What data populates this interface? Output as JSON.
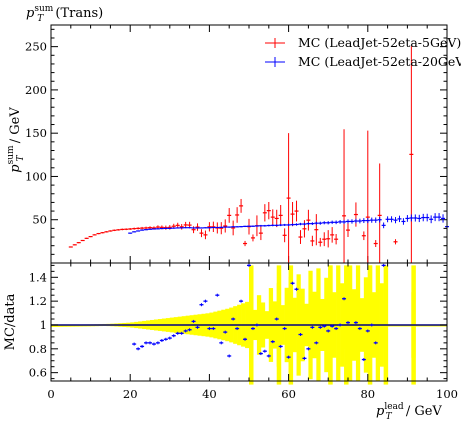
{
  "chart_data": [
    {
      "type": "line",
      "panel": "main",
      "title": {
        "base": "p",
        "sup": "sum",
        "sub": "T",
        "suffix": " (Trans)"
      },
      "ylabel": {
        "base": "p",
        "sup": "sum",
        "sub": "T",
        "suffix": " / GeV"
      },
      "xlim": [
        0,
        100
      ],
      "ylim": [
        0,
        275
      ],
      "yticks": [
        50,
        100,
        150,
        200,
        250
      ],
      "legend_position": "top-right",
      "series": [
        {
          "name": "MC (LeadJet-52eta-5GeV)",
          "color": "#ff0000",
          "points": [
            [
              5,
              18.5,
              0.6
            ],
            [
              6,
              21.0,
              0.6
            ],
            [
              7,
              23.5,
              0.6
            ],
            [
              8,
              26.0,
              0.6
            ],
            [
              9,
              28.5,
              0.6
            ],
            [
              10,
              30.5,
              0.6
            ],
            [
              11,
              32.5,
              0.7
            ],
            [
              12,
              34.0,
              0.7
            ],
            [
              13,
              35.0,
              0.7
            ],
            [
              14,
              36.0,
              0.8
            ],
            [
              15,
              37.0,
              0.8
            ],
            [
              16,
              37.8,
              0.9
            ],
            [
              17,
              38.3,
              0.9
            ],
            [
              18,
              38.8,
              1.0
            ],
            [
              19,
              39.0,
              1.0
            ],
            [
              20,
              39.3,
              1.1
            ],
            [
              21,
              39.7,
              1.2
            ],
            [
              22,
              40.0,
              1.3
            ],
            [
              23,
              40.3,
              1.4
            ],
            [
              24,
              40.5,
              1.5
            ],
            [
              25,
              40.8,
              1.6
            ],
            [
              26,
              40.5,
              1.8
            ],
            [
              27,
              41.5,
              2.0
            ],
            [
              28,
              41.2,
              2.2
            ],
            [
              29,
              40.8,
              2.4
            ],
            [
              30,
              41.2,
              2.6
            ],
            [
              31,
              42.5,
              2.8
            ],
            [
              32,
              43.5,
              3.0
            ],
            [
              33,
              41.8,
              3.2
            ],
            [
              34,
              44.0,
              3.5
            ],
            [
              35,
              43.8,
              3.8
            ],
            [
              36,
              38.5,
              4.0
            ],
            [
              37,
              41.5,
              4.3
            ],
            [
              38,
              34.5,
              4.6
            ],
            [
              39,
              32.5,
              5.0
            ],
            [
              40,
              41.8,
              5.4
            ],
            [
              41,
              41.8,
              6.0
            ],
            [
              42,
              40.5,
              6.4
            ],
            [
              43,
              40.2,
              7.0
            ],
            [
              44,
              42.8,
              7.6
            ],
            [
              45,
              55.0,
              8.5
            ],
            [
              46,
              40.5,
              8.5
            ],
            [
              47,
              55.5,
              9.0
            ],
            [
              48,
              66.0,
              8.0
            ],
            [
              49,
              22.5,
              3.0
            ],
            [
              50,
              42.0,
              9.0
            ],
            [
              51,
              29.0,
              4.0
            ],
            [
              52,
              43.0,
              12.0
            ],
            [
              53,
              34.5,
              8.0
            ],
            [
              54,
              58.0,
              10.0
            ],
            [
              55,
              60.5,
              10.0
            ],
            [
              56,
              53.0,
              9.0
            ],
            [
              57,
              51.5,
              10.0
            ],
            [
              58,
              55.0,
              12.0
            ],
            [
              59,
              32.0,
              8.0
            ],
            [
              60,
              75.0,
              75.0
            ],
            [
              61,
              56.5,
              14.0
            ],
            [
              62,
              60.0,
              12.0
            ],
            [
              63,
              30.0,
              8.0
            ],
            [
              64,
              39.5,
              10.0
            ],
            [
              65,
              49.5,
              12.0
            ],
            [
              66,
              25.5,
              6.0
            ],
            [
              67,
              38.5,
              18.0
            ],
            [
              68,
              24.0,
              5.0
            ],
            [
              69,
              27.5,
              8.0
            ],
            [
              70,
              28.0,
              10.0
            ],
            [
              71,
              32.5,
              9.0
            ],
            [
              72,
              27.5,
              6.0
            ],
            [
              74,
              54.5,
              100.0
            ],
            [
              75,
              38.0,
              8.0
            ],
            [
              77,
              56.0,
              14.0
            ],
            [
              79,
              31.5,
              5.0
            ],
            [
              80,
              53.0,
              100.0
            ],
            [
              82,
              22.5,
              4.0
            ],
            [
              83,
              55.0,
              60.0
            ],
            [
              87,
              24.5,
              3.0
            ],
            [
              91,
              125.5,
              125.0
            ]
          ]
        },
        {
          "name": "MC (LeadJet-52eta-20GeV)",
          "color": "#0000ff",
          "points": [
            [
              20,
              34.5,
              0.6
            ],
            [
              21,
              36.0,
              0.6
            ],
            [
              22,
              37.0,
              0.6
            ],
            [
              23,
              38.0,
              0.6
            ],
            [
              24,
              38.5,
              0.6
            ],
            [
              25,
              39.0,
              0.6
            ],
            [
              26,
              39.3,
              0.6
            ],
            [
              27,
              39.5,
              0.6
            ],
            [
              28,
              39.8,
              0.6
            ],
            [
              29,
              40.0,
              0.6
            ],
            [
              30,
              40.0,
              0.6
            ],
            [
              31,
              40.3,
              0.6
            ],
            [
              32,
              40.5,
              0.6
            ],
            [
              33,
              40.6,
              0.6
            ],
            [
              34,
              40.8,
              0.6
            ],
            [
              35,
              40.8,
              0.6
            ],
            [
              36,
              40.5,
              0.6
            ],
            [
              37,
              40.5,
              0.6
            ],
            [
              38,
              40.5,
              0.6
            ],
            [
              39,
              40.7,
              0.6
            ],
            [
              40,
              40.7,
              0.6
            ],
            [
              41,
              41.0,
              0.6
            ],
            [
              42,
              41.0,
              0.7
            ],
            [
              43,
              41.2,
              0.7
            ],
            [
              44,
              41.5,
              0.7
            ],
            [
              45,
              41.5,
              0.7
            ],
            [
              46,
              41.8,
              0.8
            ],
            [
              47,
              41.8,
              0.8
            ],
            [
              48,
              42.0,
              0.8
            ],
            [
              49,
              42.3,
              0.8
            ],
            [
              50,
              42.5,
              0.9
            ],
            [
              51,
              42.5,
              0.9
            ],
            [
              52,
              42.8,
              0.9
            ],
            [
              53,
              43.0,
              1.0
            ],
            [
              54,
              43.0,
              1.0
            ],
            [
              55,
              43.3,
              1.0
            ],
            [
              56,
              43.5,
              1.1
            ],
            [
              57,
              43.5,
              1.1
            ],
            [
              58,
              43.8,
              1.2
            ],
            [
              59,
              44.0,
              1.2
            ],
            [
              60,
              44.0,
              1.3
            ],
            [
              61,
              44.3,
              1.3
            ],
            [
              62,
              44.5,
              1.4
            ],
            [
              63,
              45.0,
              1.4
            ],
            [
              64,
              45.0,
              1.5
            ],
            [
              65,
              45.5,
              1.5
            ],
            [
              66,
              45.5,
              1.6
            ],
            [
              67,
              46.0,
              1.7
            ],
            [
              68,
              46.0,
              1.8
            ],
            [
              69,
              46.5,
              1.8
            ],
            [
              70,
              46.5,
              1.9
            ],
            [
              71,
              47.0,
              2.0
            ],
            [
              72,
              47.0,
              2.1
            ],
            [
              73,
              47.5,
              2.2
            ],
            [
              74,
              47.5,
              2.3
            ],
            [
              75,
              48.0,
              2.4
            ],
            [
              76,
              48.0,
              2.5
            ],
            [
              77,
              48.5,
              2.6
            ],
            [
              78,
              48.5,
              2.7
            ],
            [
              79,
              49.0,
              2.8
            ],
            [
              80,
              49.0,
              2.9
            ],
            [
              81,
              49.5,
              3.0
            ],
            [
              82,
              49.5,
              3.1
            ],
            [
              83,
              50.0,
              3.2
            ],
            [
              84,
              43.5,
              3.3
            ],
            [
              85,
              50.5,
              3.4
            ],
            [
              86,
              50.5,
              3.5
            ],
            [
              87,
              49.5,
              3.6
            ],
            [
              88,
              51.0,
              3.7
            ],
            [
              89,
              48.0,
              3.8
            ],
            [
              90,
              51.5,
              3.9
            ],
            [
              91,
              52.0,
              4.0
            ],
            [
              92,
              52.0,
              4.1
            ],
            [
              93,
              51.5,
              4.2
            ],
            [
              94,
              52.5,
              4.3
            ],
            [
              95,
              52.5,
              4.4
            ],
            [
              96,
              50.5,
              4.5
            ],
            [
              97,
              53.0,
              4.6
            ],
            [
              98,
              53.0,
              4.7
            ],
            [
              99,
              51.5,
              4.8
            ],
            [
              100,
              42.0,
              8.0
            ]
          ]
        }
      ]
    },
    {
      "type": "scatter",
      "panel": "ratio",
      "ylabel": "MC/data",
      "xlabel": {
        "base": "p",
        "sup": "lead",
        "sub": "T",
        "suffix": " / GeV"
      },
      "xlim": [
        0,
        100
      ],
      "ylim": [
        0.53,
        1.52
      ],
      "xticks": [
        0,
        20,
        40,
        60,
        80,
        100
      ],
      "yticks": [
        0.6,
        0.8,
        1,
        1.2,
        1.4
      ],
      "reference_line": 1.0,
      "band_color": "#ffff00",
      "data_uncertainty_band": [
        [
          0,
          0.0
        ],
        [
          10,
          0.005
        ],
        [
          15,
          0.01
        ],
        [
          20,
          0.02
        ],
        [
          25,
          0.04
        ],
        [
          30,
          0.06
        ],
        [
          35,
          0.08
        ],
        [
          40,
          0.1
        ],
        [
          45,
          0.14
        ],
        [
          50,
          0.2
        ],
        [
          55,
          0.3
        ],
        [
          60,
          0.4
        ],
        [
          70,
          0.5
        ],
        [
          100,
          0.5
        ]
      ],
      "series": [
        {
          "color": "#0000ff",
          "points": [
            [
              21,
              0.84
            ],
            [
              22,
              0.8
            ],
            [
              23,
              0.82
            ],
            [
              24,
              0.85
            ],
            [
              25,
              0.85
            ],
            [
              26,
              0.84
            ],
            [
              27,
              0.85
            ],
            [
              28,
              0.87
            ],
            [
              29,
              0.88
            ],
            [
              30,
              0.89
            ],
            [
              31,
              0.91
            ],
            [
              32,
              0.93
            ],
            [
              33,
              0.93
            ],
            [
              34,
              0.95
            ],
            [
              35,
              0.96
            ],
            [
              36,
              1.03
            ],
            [
              37,
              0.98
            ],
            [
              38,
              1.17
            ],
            [
              39,
              1.2
            ],
            [
              40,
              0.97
            ],
            [
              41,
              0.97
            ],
            [
              42,
              1.25
            ],
            [
              43,
              0.85
            ],
            [
              44,
              0.94
            ],
            [
              45,
              0.74
            ],
            [
              46,
              1.05
            ],
            [
              47,
              0.97
            ],
            [
              48,
              1.2
            ],
            [
              49,
              0.88
            ],
            [
              50,
              1.5
            ],
            [
              51,
              0.97
            ],
            [
              52,
              1.0
            ],
            [
              53,
              0.76
            ],
            [
              54,
              0.78
            ],
            [
              55,
              0.74
            ],
            [
              56,
              0.86
            ],
            [
              57,
              1.05
            ],
            [
              58,
              0.82
            ],
            [
              59,
              0.97
            ],
            [
              60,
              0.73
            ],
            [
              61,
              1.35
            ],
            [
              62,
              1.3
            ],
            [
              63,
              0.92
            ],
            [
              64,
              0.72
            ],
            [
              65,
              0.8
            ],
            [
              66,
              0.98
            ],
            [
              67,
              0.85
            ],
            [
              68,
              0.98
            ],
            [
              69,
              0.99
            ],
            [
              70,
              0.95
            ],
            [
              71,
              0.99
            ],
            [
              72,
              0.97
            ],
            [
              73,
              1.0
            ],
            [
              74,
              1.22
            ],
            [
              75,
              1.02
            ],
            [
              77,
              1.02
            ],
            [
              78,
              0.97
            ],
            [
              79,
              0.71
            ],
            [
              80,
              0.95
            ],
            [
              81,
              1.0
            ],
            [
              82,
              0.85
            ],
            [
              84,
              1.5
            ]
          ]
        }
      ]
    }
  ]
}
